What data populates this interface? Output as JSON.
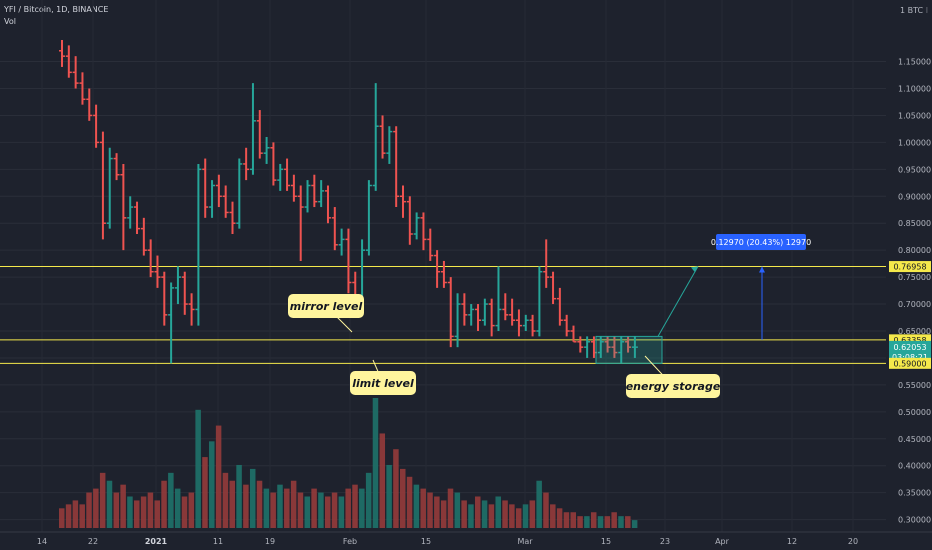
{
  "header": {
    "symbol_line": "YFI / Bitcoin, 1D, BINANCE",
    "volume_label": "Vol"
  },
  "colors": {
    "background": "#1e222d",
    "up": "#26a69a",
    "down": "#ef5350",
    "level_line": "#f5e94b",
    "note_bg": "#fff59d",
    "measure": "#2962ff"
  },
  "price_axis": {
    "unit_label": "1 BTC ⁝",
    "ticks": [
      "1.15000",
      "1.10000",
      "1.05000",
      "1.00000",
      "0.95000",
      "0.90000",
      "0.85000",
      "0.80000",
      "0.75000",
      "0.70000",
      "0.65000",
      "0.60000",
      "0.55000",
      "0.50000",
      "0.45000",
      "0.40000",
      "0.35000",
      "0.30000"
    ]
  },
  "time_axis": {
    "ticks": [
      "14",
      "22",
      "2021",
      "11",
      "19",
      "Feb",
      "15",
      "Mar",
      "15",
      "23",
      "Apr",
      "12",
      "20"
    ]
  },
  "price_tags": {
    "upper_level": "0.76958",
    "mirror_level": "0.63358",
    "current_price": "0.62053",
    "countdown": "03:08:21",
    "limit_level": "0.59000"
  },
  "annotations": {
    "mirror": "mirror level",
    "limit": "limit level",
    "energy": "energy storage",
    "measure": "0.12970 (20.43%) 12970"
  },
  "chart_data": {
    "type": "candlestick",
    "title": "YFI / Bitcoin, 1D, BINANCE",
    "series": [
      {
        "name": "YFI / Bitcoin",
        "candles": [
          {
            "o": 1.17,
            "h": 1.19,
            "l": 1.14,
            "c": 1.16
          },
          {
            "o": 1.16,
            "h": 1.18,
            "l": 1.12,
            "c": 1.13
          },
          {
            "o": 1.13,
            "h": 1.16,
            "l": 1.1,
            "c": 1.11
          },
          {
            "o": 1.11,
            "h": 1.13,
            "l": 1.07,
            "c": 1.08
          },
          {
            "o": 1.08,
            "h": 1.1,
            "l": 1.04,
            "c": 1.05
          },
          {
            "o": 1.05,
            "h": 1.07,
            "l": 0.99,
            "c": 1.0
          },
          {
            "o": 1.0,
            "h": 1.02,
            "l": 0.82,
            "c": 0.85
          },
          {
            "o": 0.85,
            "h": 0.99,
            "l": 0.84,
            "c": 0.97
          },
          {
            "o": 0.97,
            "h": 0.98,
            "l": 0.93,
            "c": 0.94
          },
          {
            "o": 0.94,
            "h": 0.96,
            "l": 0.8,
            "c": 0.86
          },
          {
            "o": 0.86,
            "h": 0.9,
            "l": 0.84,
            "c": 0.88
          },
          {
            "o": 0.88,
            "h": 0.89,
            "l": 0.83,
            "c": 0.84
          },
          {
            "o": 0.84,
            "h": 0.86,
            "l": 0.79,
            "c": 0.8
          },
          {
            "o": 0.8,
            "h": 0.82,
            "l": 0.75,
            "c": 0.76
          },
          {
            "o": 0.76,
            "h": 0.79,
            "l": 0.73,
            "c": 0.75
          },
          {
            "o": 0.75,
            "h": 0.76,
            "l": 0.66,
            "c": 0.68
          },
          {
            "o": 0.68,
            "h": 0.74,
            "l": 0.59,
            "c": 0.73
          },
          {
            "o": 0.73,
            "h": 0.77,
            "l": 0.7,
            "c": 0.75
          },
          {
            "o": 0.75,
            "h": 0.76,
            "l": 0.68,
            "c": 0.7
          },
          {
            "o": 0.7,
            "h": 0.72,
            "l": 0.66,
            "c": 0.69
          },
          {
            "o": 0.69,
            "h": 0.96,
            "l": 0.66,
            "c": 0.95
          },
          {
            "o": 0.95,
            "h": 0.97,
            "l": 0.86,
            "c": 0.88
          },
          {
            "o": 0.88,
            "h": 0.93,
            "l": 0.86,
            "c": 0.92
          },
          {
            "o": 0.92,
            "h": 0.94,
            "l": 0.88,
            "c": 0.9
          },
          {
            "o": 0.9,
            "h": 0.92,
            "l": 0.86,
            "c": 0.87
          },
          {
            "o": 0.87,
            "h": 0.89,
            "l": 0.83,
            "c": 0.85
          },
          {
            "o": 0.85,
            "h": 0.97,
            "l": 0.84,
            "c": 0.96
          },
          {
            "o": 0.96,
            "h": 0.99,
            "l": 0.93,
            "c": 0.95
          },
          {
            "o": 0.95,
            "h": 1.11,
            "l": 0.94,
            "c": 1.04
          },
          {
            "o": 1.04,
            "h": 1.06,
            "l": 0.97,
            "c": 0.98
          },
          {
            "o": 0.98,
            "h": 1.01,
            "l": 0.96,
            "c": 0.99
          },
          {
            "o": 0.99,
            "h": 1.0,
            "l": 0.92,
            "c": 0.93
          },
          {
            "o": 0.93,
            "h": 0.96,
            "l": 0.91,
            "c": 0.95
          },
          {
            "o": 0.95,
            "h": 0.97,
            "l": 0.91,
            "c": 0.92
          },
          {
            "o": 0.92,
            "h": 0.94,
            "l": 0.89,
            "c": 0.9
          },
          {
            "o": 0.9,
            "h": 0.92,
            "l": 0.78,
            "c": 0.88
          },
          {
            "o": 0.88,
            "h": 0.93,
            "l": 0.87,
            "c": 0.92
          },
          {
            "o": 0.92,
            "h": 0.94,
            "l": 0.88,
            "c": 0.89
          },
          {
            "o": 0.89,
            "h": 0.93,
            "l": 0.88,
            "c": 0.91
          },
          {
            "o": 0.91,
            "h": 0.92,
            "l": 0.85,
            "c": 0.86
          },
          {
            "o": 0.86,
            "h": 0.88,
            "l": 0.8,
            "c": 0.81
          },
          {
            "o": 0.81,
            "h": 0.84,
            "l": 0.79,
            "c": 0.82
          },
          {
            "o": 0.82,
            "h": 0.84,
            "l": 0.72,
            "c": 0.74
          },
          {
            "o": 0.74,
            "h": 0.76,
            "l": 0.68,
            "c": 0.7
          },
          {
            "o": 0.7,
            "h": 0.82,
            "l": 0.69,
            "c": 0.8
          },
          {
            "o": 0.8,
            "h": 0.93,
            "l": 0.79,
            "c": 0.92
          },
          {
            "o": 0.92,
            "h": 1.11,
            "l": 0.91,
            "c": 1.03
          },
          {
            "o": 1.03,
            "h": 1.05,
            "l": 0.97,
            "c": 0.98
          },
          {
            "o": 0.98,
            "h": 1.03,
            "l": 0.96,
            "c": 1.02
          },
          {
            "o": 1.02,
            "h": 1.03,
            "l": 0.88,
            "c": 0.9
          },
          {
            "o": 0.9,
            "h": 0.92,
            "l": 0.86,
            "c": 0.89
          },
          {
            "o": 0.89,
            "h": 0.9,
            "l": 0.81,
            "c": 0.83
          },
          {
            "o": 0.83,
            "h": 0.87,
            "l": 0.82,
            "c": 0.86
          },
          {
            "o": 0.86,
            "h": 0.87,
            "l": 0.8,
            "c": 0.82
          },
          {
            "o": 0.82,
            "h": 0.84,
            "l": 0.78,
            "c": 0.79
          },
          {
            "o": 0.79,
            "h": 0.8,
            "l": 0.73,
            "c": 0.76
          },
          {
            "o": 0.76,
            "h": 0.78,
            "l": 0.73,
            "c": 0.74
          },
          {
            "o": 0.74,
            "h": 0.75,
            "l": 0.62,
            "c": 0.64
          },
          {
            "o": 0.64,
            "h": 0.72,
            "l": 0.62,
            "c": 0.7
          },
          {
            "o": 0.7,
            "h": 0.72,
            "l": 0.66,
            "c": 0.68
          },
          {
            "o": 0.68,
            "h": 0.7,
            "l": 0.66,
            "c": 0.69
          },
          {
            "o": 0.69,
            "h": 0.7,
            "l": 0.65,
            "c": 0.67
          },
          {
            "o": 0.67,
            "h": 0.71,
            "l": 0.66,
            "c": 0.7
          },
          {
            "o": 0.7,
            "h": 0.71,
            "l": 0.64,
            "c": 0.66
          },
          {
            "o": 0.66,
            "h": 0.77,
            "l": 0.65,
            "c": 0.69
          },
          {
            "o": 0.69,
            "h": 0.72,
            "l": 0.67,
            "c": 0.68
          },
          {
            "o": 0.68,
            "h": 0.71,
            "l": 0.66,
            "c": 0.67
          },
          {
            "o": 0.67,
            "h": 0.69,
            "l": 0.64,
            "c": 0.66
          },
          {
            "o": 0.66,
            "h": 0.68,
            "l": 0.65,
            "c": 0.67
          },
          {
            "o": 0.67,
            "h": 0.68,
            "l": 0.64,
            "c": 0.65
          },
          {
            "o": 0.65,
            "h": 0.77,
            "l": 0.64,
            "c": 0.76
          },
          {
            "o": 0.76,
            "h": 0.82,
            "l": 0.73,
            "c": 0.75
          },
          {
            "o": 0.75,
            "h": 0.76,
            "l": 0.7,
            "c": 0.71
          },
          {
            "o": 0.71,
            "h": 0.73,
            "l": 0.66,
            "c": 0.67
          },
          {
            "o": 0.67,
            "h": 0.68,
            "l": 0.64,
            "c": 0.65
          },
          {
            "o": 0.65,
            "h": 0.66,
            "l": 0.63,
            "c": 0.63
          },
          {
            "o": 0.63,
            "h": 0.64,
            "l": 0.61,
            "c": 0.62
          },
          {
            "o": 0.62,
            "h": 0.64,
            "l": 0.6,
            "c": 0.63
          },
          {
            "o": 0.63,
            "h": 0.64,
            "l": 0.6,
            "c": 0.61
          },
          {
            "o": 0.61,
            "h": 0.64,
            "l": 0.6,
            "c": 0.63
          },
          {
            "o": 0.63,
            "h": 0.64,
            "l": 0.61,
            "c": 0.62
          },
          {
            "o": 0.62,
            "h": 0.64,
            "l": 0.6,
            "c": 0.61
          },
          {
            "o": 0.61,
            "h": 0.64,
            "l": 0.59,
            "c": 0.63
          },
          {
            "o": 0.63,
            "h": 0.64,
            "l": 0.61,
            "c": 0.62
          },
          {
            "o": 0.62,
            "h": 0.64,
            "l": 0.6,
            "c": 0.62
          }
        ]
      }
    ],
    "price_range": [
      0.29,
      1.19
    ],
    "levels": [
      0.76958,
      0.63358,
      0.59
    ],
    "volume": [
      5,
      6,
      7,
      6,
      9,
      10,
      14,
      12,
      9,
      11,
      8,
      7,
      8,
      9,
      7,
      12,
      14,
      10,
      8,
      9,
      30,
      18,
      22,
      26,
      14,
      12,
      16,
      11,
      15,
      12,
      10,
      9,
      11,
      10,
      12,
      9,
      8,
      10,
      9,
      8,
      9,
      8,
      10,
      11,
      10,
      14,
      33,
      24,
      16,
      20,
      15,
      13,
      11,
      10,
      9,
      8,
      7,
      10,
      9,
      7,
      6,
      8,
      7,
      6,
      8,
      7,
      6,
      5,
      6,
      7,
      12,
      9,
      6,
      5,
      4,
      4,
      3,
      3,
      4,
      3,
      3,
      4,
      3,
      3,
      2
    ],
    "volume_range": [
      0,
      1
    ],
    "grid": true
  }
}
